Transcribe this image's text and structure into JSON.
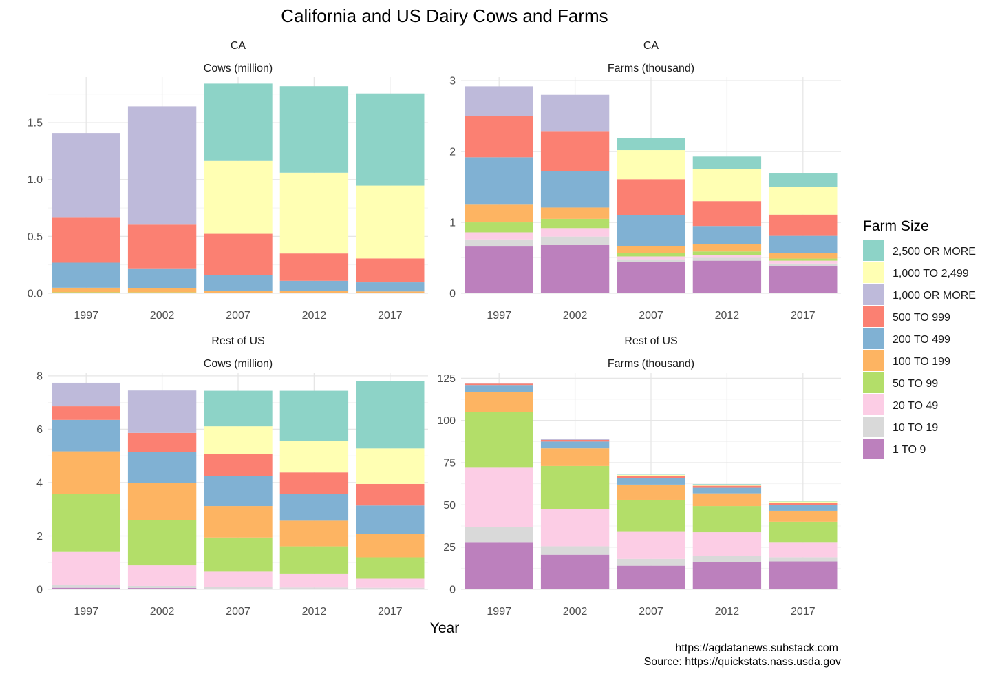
{
  "title": "California and US Dairy Cows and Farms",
  "xlabel": "Year",
  "caption": [
    "https://agdatanews.substack.com",
    "Source: https://quickstats.nass.usda.gov"
  ],
  "legend": {
    "title": "Farm Size",
    "placement": "right",
    "items": [
      {
        "label": "2,500 OR MORE",
        "color": "#8DD3C7"
      },
      {
        "label": "1,000 TO 2,499",
        "color": "#FFFFB3"
      },
      {
        "label": "1,000 OR MORE",
        "color": "#BEBADA"
      },
      {
        "label": "500 TO 999",
        "color": "#FB8072"
      },
      {
        "label": "200 TO 499",
        "color": "#80B1D3"
      },
      {
        "label": "100 TO 199",
        "color": "#FDB462"
      },
      {
        "label": "50 TO 99",
        "color": "#B3DE69"
      },
      {
        "label": "20 TO 49",
        "color": "#FCCDE5"
      },
      {
        "label": "10 TO 19",
        "color": "#D9D9D9"
      },
      {
        "label": "1 TO 9",
        "color": "#BC80BD"
      }
    ]
  },
  "chart_data": [
    {
      "type": "bar",
      "stacked": true,
      "region": "CA",
      "measure": "Cows (million)",
      "categories": [
        "1997",
        "2002",
        "2007",
        "2012",
        "2017"
      ],
      "ylim": [
        0,
        1.9
      ],
      "yticks": [
        0.0,
        0.5,
        1.0,
        1.5
      ],
      "ytick_labels": [
        "0.0",
        "0.5",
        "1.0",
        "1.5"
      ],
      "grid": true,
      "series": [
        {
          "name": "1 TO 9",
          "values": [
            0.0005,
            0.0005,
            0.0004,
            0.0004,
            0.0004
          ]
        },
        {
          "name": "10 TO 19",
          "values": [
            0.0008,
            0.0007,
            0.0005,
            0.0005,
            0.0005
          ]
        },
        {
          "name": "20 TO 49",
          "values": [
            0.002,
            0.0018,
            0.0012,
            0.0012,
            0.0011
          ]
        },
        {
          "name": "50 TO 99",
          "values": [
            0.006,
            0.0055,
            0.003,
            0.003,
            0.0025
          ]
        },
        {
          "name": "100 TO 199",
          "values": [
            0.04,
            0.035,
            0.018,
            0.015,
            0.012
          ]
        },
        {
          "name": "200 TO 499",
          "values": [
            0.22,
            0.17,
            0.14,
            0.09,
            0.08
          ]
        },
        {
          "name": "500 TO 999",
          "values": [
            0.4,
            0.39,
            0.36,
            0.24,
            0.21
          ]
        },
        {
          "name": "1,000 OR MORE",
          "values": [
            0.74,
            1.04,
            0,
            0,
            0
          ]
        },
        {
          "name": "1,000 TO 2,499",
          "values": [
            0,
            0,
            0.64,
            0.71,
            0.64
          ]
        },
        {
          "name": "2,500 OR MORE",
          "values": [
            0,
            0,
            0.68,
            0.76,
            0.81
          ]
        }
      ]
    },
    {
      "type": "bar",
      "stacked": true,
      "region": "CA",
      "measure": "Farms (thousand)",
      "categories": [
        "1997",
        "2002",
        "2007",
        "2012",
        "2017"
      ],
      "ylim": [
        0,
        3.05
      ],
      "yticks": [
        0,
        1,
        2,
        3
      ],
      "ytick_labels": [
        "0",
        "1",
        "2",
        "3"
      ],
      "grid": true,
      "series": [
        {
          "name": "1 TO 9",
          "values": [
            0.66,
            0.68,
            0.44,
            0.46,
            0.38
          ]
        },
        {
          "name": "10 TO 19",
          "values": [
            0.1,
            0.12,
            0.04,
            0.04,
            0.04
          ]
        },
        {
          "name": "20 TO 49",
          "values": [
            0.1,
            0.12,
            0.04,
            0.04,
            0.04
          ]
        },
        {
          "name": "50 TO 99",
          "values": [
            0.14,
            0.13,
            0.05,
            0.05,
            0.03
          ]
        },
        {
          "name": "100 TO 199",
          "values": [
            0.25,
            0.16,
            0.1,
            0.1,
            0.08
          ]
        },
        {
          "name": "200 TO 499",
          "values": [
            0.67,
            0.51,
            0.43,
            0.26,
            0.24
          ]
        },
        {
          "name": "500 TO 999",
          "values": [
            0.58,
            0.56,
            0.51,
            0.35,
            0.3
          ]
        },
        {
          "name": "1,000 OR MORE",
          "values": [
            0.42,
            0.52,
            0,
            0,
            0
          ]
        },
        {
          "name": "1,000 TO 2,499",
          "values": [
            0,
            0,
            0.41,
            0.45,
            0.39
          ]
        },
        {
          "name": "2,500 OR MORE",
          "values": [
            0,
            0,
            0.17,
            0.18,
            0.19
          ]
        }
      ]
    },
    {
      "type": "bar",
      "stacked": true,
      "region": "Rest of US",
      "measure": "Cows (million)",
      "categories": [
        "1997",
        "2002",
        "2007",
        "2012",
        "2017"
      ],
      "ylim": [
        0,
        8.1
      ],
      "yticks": [
        0,
        2,
        4,
        6,
        8
      ],
      "ytick_labels": [
        "0",
        "2",
        "4",
        "6",
        "8"
      ],
      "grid": true,
      "series": [
        {
          "name": "1 TO 9",
          "values": [
            0.06,
            0.05,
            0.03,
            0.03,
            0.03
          ]
        },
        {
          "name": "10 TO 19",
          "values": [
            0.12,
            0.08,
            0.05,
            0.04,
            0.03
          ]
        },
        {
          "name": "20 TO 49",
          "values": [
            1.22,
            0.77,
            0.58,
            0.5,
            0.34
          ]
        },
        {
          "name": "50 TO 99",
          "values": [
            2.18,
            1.7,
            1.28,
            1.04,
            0.8
          ]
        },
        {
          "name": "100 TO 199",
          "values": [
            1.59,
            1.38,
            1.18,
            0.96,
            0.88
          ]
        },
        {
          "name": "200 TO 499",
          "values": [
            1.18,
            1.17,
            1.13,
            1.01,
            1.06
          ]
        },
        {
          "name": "500 TO 999",
          "values": [
            0.51,
            0.71,
            0.81,
            0.8,
            0.81
          ]
        },
        {
          "name": "1,000 OR MORE",
          "values": [
            0.88,
            1.59,
            0,
            0,
            0
          ]
        },
        {
          "name": "1,000 TO 2,499",
          "values": [
            0,
            0,
            1.05,
            1.19,
            1.33
          ]
        },
        {
          "name": "2,500 OR MORE",
          "values": [
            0,
            0,
            1.33,
            1.87,
            2.53
          ]
        }
      ]
    },
    {
      "type": "bar",
      "stacked": true,
      "region": "Rest of US",
      "measure": "Farms (thousand)",
      "categories": [
        "1997",
        "2002",
        "2007",
        "2012",
        "2017"
      ],
      "ylim": [
        0,
        128
      ],
      "yticks": [
        0,
        25,
        50,
        75,
        100,
        125
      ],
      "ytick_labels": [
        "0",
        "25",
        "50",
        "75",
        "100",
        "125"
      ],
      "grid": true,
      "series": [
        {
          "name": "1 TO 9",
          "values": [
            28.0,
            20.5,
            14.0,
            16.0,
            16.5
          ]
        },
        {
          "name": "10 TO 19",
          "values": [
            9.0,
            5.0,
            4.0,
            3.8,
            2.5
          ]
        },
        {
          "name": "20 TO 49",
          "values": [
            35.0,
            22.0,
            16.0,
            14.0,
            9.0
          ]
        },
        {
          "name": "50 TO 99",
          "values": [
            33.0,
            25.5,
            19.0,
            15.5,
            12.0
          ]
        },
        {
          "name": "100 TO 199",
          "values": [
            12.0,
            10.5,
            9.0,
            7.5,
            6.5
          ]
        },
        {
          "name": "200 TO 499",
          "values": [
            4.0,
            4.0,
            3.7,
            3.3,
            3.5
          ]
        },
        {
          "name": "500 TO 999",
          "values": [
            0.8,
            1.0,
            1.2,
            1.2,
            1.2
          ]
        },
        {
          "name": "1,000 OR MORE",
          "values": [
            0.4,
            0.6,
            0,
            0,
            0
          ]
        },
        {
          "name": "1,000 TO 2,499",
          "values": [
            0,
            0,
            0.8,
            0.7,
            0.8
          ]
        },
        {
          "name": "2,500 OR MORE",
          "values": [
            0,
            0,
            0.2,
            0.3,
            0.5
          ]
        }
      ]
    }
  ]
}
